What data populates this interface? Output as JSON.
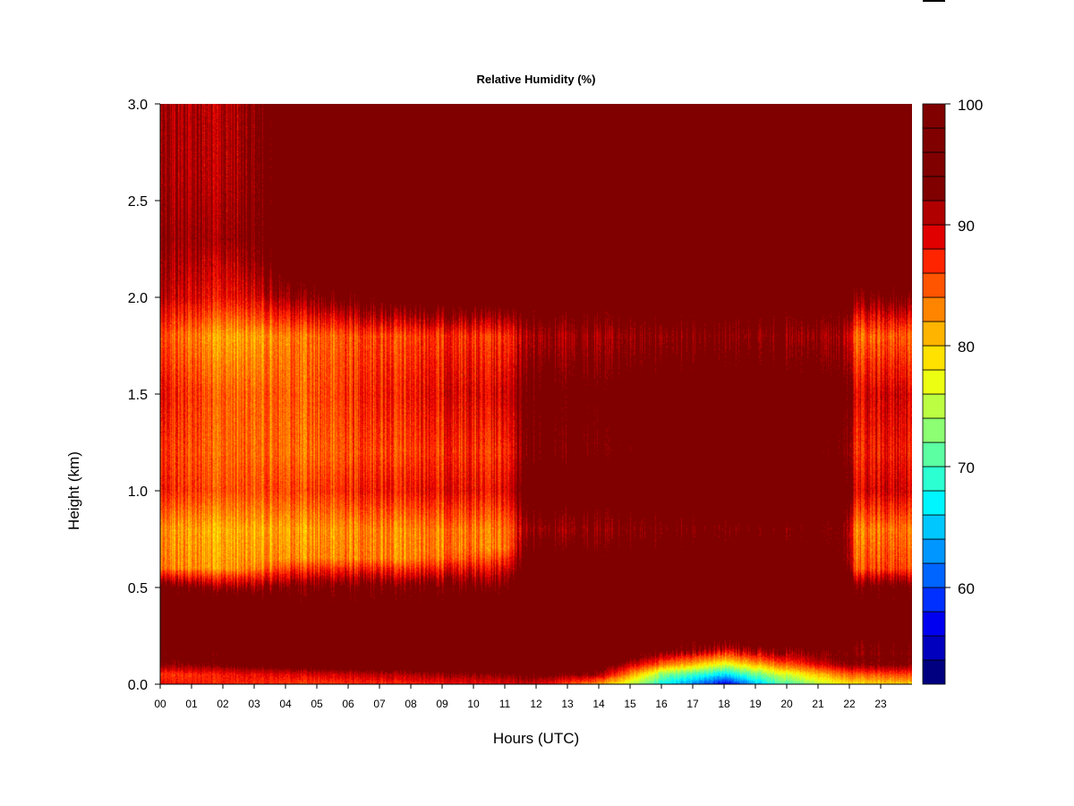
{
  "chart_data": {
    "type": "heatmap",
    "title": "Relative Humidity (%)",
    "xlabel": "Hours (UTC)",
    "ylabel": "Height (km)",
    "x_ticks": [
      "00",
      "01",
      "02",
      "03",
      "04",
      "05",
      "06",
      "07",
      "08",
      "09",
      "10",
      "11",
      "12",
      "13",
      "14",
      "15",
      "16",
      "17",
      "18",
      "19",
      "20",
      "21",
      "22",
      "23"
    ],
    "y_ticks": [
      "0.0",
      "0.5",
      "1.0",
      "1.5",
      "2.0",
      "2.5",
      "3.0"
    ],
    "xlim": [
      0,
      24
    ],
    "ylim": [
      0,
      3.0
    ],
    "colorbar": {
      "min": 52,
      "max": 100,
      "step": 2,
      "tick_labels": [
        "100",
        "90",
        "80",
        "70",
        "60"
      ],
      "tick_values": [
        100,
        90,
        80,
        70,
        60
      ],
      "colors": [
        "#000080",
        "#0000BE",
        "#0000F0",
        "#0030FF",
        "#0064FF",
        "#0096FF",
        "#00C8FF",
        "#00F6FF",
        "#2CFFD2",
        "#5CFFA2",
        "#8CFF72",
        "#BCFF42",
        "#ECFF12",
        "#FFE200",
        "#FFB400",
        "#FF8400",
        "#FF5400",
        "#FF2400",
        "#E00000",
        "#B00000",
        "#800000",
        "#800000",
        "#800000",
        "#800000"
      ]
    },
    "time_profiles": [
      {
        "hour": 0,
        "points": [
          [
            0,
            88
          ],
          [
            0.05,
            86
          ],
          [
            0.1,
            92
          ],
          [
            0.2,
            97
          ],
          [
            0.35,
            97
          ],
          [
            0.5,
            95
          ],
          [
            0.6,
            83
          ],
          [
            0.8,
            82
          ],
          [
            1.0,
            87
          ],
          [
            1.2,
            86
          ],
          [
            1.5,
            88
          ],
          [
            1.8,
            85
          ],
          [
            2.0,
            90
          ],
          [
            2.3,
            92
          ],
          [
            2.6,
            91
          ],
          [
            3.0,
            91
          ]
        ]
      },
      {
        "hour": 2.5,
        "points": [
          [
            0,
            87
          ],
          [
            0.05,
            88
          ],
          [
            0.1,
            94
          ],
          [
            0.25,
            98
          ],
          [
            0.45,
            96
          ],
          [
            0.6,
            82
          ],
          [
            0.8,
            81
          ],
          [
            1.0,
            85
          ],
          [
            1.2,
            84
          ],
          [
            1.5,
            84
          ],
          [
            1.8,
            81
          ],
          [
            2.0,
            88
          ],
          [
            2.3,
            92
          ],
          [
            2.6,
            91
          ],
          [
            3.0,
            91
          ]
        ]
      },
      {
        "hour": 4.5,
        "points": [
          [
            0,
            86
          ],
          [
            0.05,
            89
          ],
          [
            0.1,
            96
          ],
          [
            0.3,
            98
          ],
          [
            0.5,
            94
          ],
          [
            0.65,
            83
          ],
          [
            0.8,
            82
          ],
          [
            1.0,
            86
          ],
          [
            1.2,
            84
          ],
          [
            1.5,
            85
          ],
          [
            1.8,
            84
          ],
          [
            2.0,
            93
          ],
          [
            2.2,
            99
          ],
          [
            3.0,
            100
          ]
        ]
      },
      {
        "hour": 8,
        "points": [
          [
            0,
            87
          ],
          [
            0.05,
            91
          ],
          [
            0.1,
            97
          ],
          [
            0.3,
            98
          ],
          [
            0.5,
            94
          ],
          [
            0.65,
            83
          ],
          [
            0.8,
            83
          ],
          [
            1.0,
            88
          ],
          [
            1.2,
            86
          ],
          [
            1.5,
            88
          ],
          [
            1.8,
            86
          ],
          [
            2.0,
            97
          ],
          [
            2.2,
            100
          ],
          [
            3.0,
            100
          ]
        ]
      },
      {
        "hour": 11,
        "points": [
          [
            0,
            89
          ],
          [
            0.05,
            93
          ],
          [
            0.1,
            98
          ],
          [
            0.4,
            99
          ],
          [
            0.55,
            92
          ],
          [
            0.7,
            84
          ],
          [
            0.8,
            84
          ],
          [
            1.0,
            89
          ],
          [
            1.2,
            87
          ],
          [
            1.5,
            90
          ],
          [
            1.8,
            87
          ],
          [
            2.0,
            98
          ],
          [
            3.0,
            100
          ]
        ]
      },
      {
        "hour": 11.7,
        "points": [
          [
            0,
            90
          ],
          [
            0.05,
            94
          ],
          [
            0.1,
            99
          ],
          [
            0.5,
            100
          ],
          [
            0.65,
            96
          ],
          [
            0.8,
            92
          ],
          [
            1.0,
            97
          ],
          [
            1.2,
            94
          ],
          [
            1.5,
            95
          ],
          [
            1.8,
            91
          ],
          [
            2.0,
            98
          ],
          [
            3.0,
            100
          ]
        ]
      },
      {
        "hour": 14,
        "points": [
          [
            0,
            82
          ],
          [
            0.05,
            92
          ],
          [
            0.12,
            98
          ],
          [
            0.5,
            100
          ],
          [
            0.65,
            96
          ],
          [
            0.8,
            93
          ],
          [
            1.0,
            98
          ],
          [
            1.2,
            95
          ],
          [
            1.5,
            96
          ],
          [
            1.8,
            92
          ],
          [
            2.0,
            98
          ],
          [
            3.0,
            100
          ]
        ]
      },
      {
        "hour": 16,
        "points": [
          [
            0,
            68
          ],
          [
            0.05,
            73
          ],
          [
            0.1,
            84
          ],
          [
            0.18,
            96
          ],
          [
            0.5,
            100
          ],
          [
            0.65,
            97
          ],
          [
            0.8,
            94
          ],
          [
            1.0,
            98
          ],
          [
            1.2,
            96
          ],
          [
            1.5,
            97
          ],
          [
            1.8,
            93
          ],
          [
            2.0,
            98
          ],
          [
            3.0,
            100
          ]
        ]
      },
      {
        "hour": 18,
        "points": [
          [
            0,
            56
          ],
          [
            0.05,
            66
          ],
          [
            0.1,
            76
          ],
          [
            0.18,
            90
          ],
          [
            0.25,
            97
          ],
          [
            0.5,
            100
          ],
          [
            0.65,
            97
          ],
          [
            0.8,
            94
          ],
          [
            1.0,
            99
          ],
          [
            1.2,
            96
          ],
          [
            1.5,
            98
          ],
          [
            1.8,
            93
          ],
          [
            2.0,
            98
          ],
          [
            3.0,
            100
          ]
        ]
      },
      {
        "hour": 19.5,
        "points": [
          [
            0,
            68
          ],
          [
            0.05,
            74
          ],
          [
            0.12,
            86
          ],
          [
            0.2,
            96
          ],
          [
            0.5,
            100
          ],
          [
            0.65,
            97
          ],
          [
            0.8,
            95
          ],
          [
            1.0,
            99
          ],
          [
            1.2,
            97
          ],
          [
            1.5,
            98
          ],
          [
            1.8,
            93
          ],
          [
            2.0,
            98
          ],
          [
            3.0,
            100
          ]
        ]
      },
      {
        "hour": 21.8,
        "points": [
          [
            0,
            78
          ],
          [
            0.05,
            84
          ],
          [
            0.1,
            92
          ],
          [
            0.2,
            97
          ],
          [
            0.5,
            99
          ],
          [
            0.65,
            96
          ],
          [
            0.8,
            95
          ],
          [
            1.0,
            98
          ],
          [
            1.2,
            95
          ],
          [
            1.5,
            97
          ],
          [
            1.8,
            92
          ],
          [
            2.0,
            98
          ],
          [
            3.0,
            100
          ]
        ]
      },
      {
        "hour": 22.2,
        "points": [
          [
            0,
            79
          ],
          [
            0.05,
            85
          ],
          [
            0.1,
            93
          ],
          [
            0.3,
            97
          ],
          [
            0.5,
            95
          ],
          [
            0.6,
            86
          ],
          [
            0.8,
            84
          ],
          [
            1.0,
            90
          ],
          [
            1.2,
            88
          ],
          [
            1.5,
            90
          ],
          [
            1.8,
            85
          ],
          [
            2.0,
            94
          ],
          [
            2.2,
            100
          ],
          [
            3.0,
            100
          ]
        ]
      },
      {
        "hour": 24,
        "points": [
          [
            0,
            80
          ],
          [
            0.05,
            86
          ],
          [
            0.1,
            93
          ],
          [
            0.3,
            97
          ],
          [
            0.5,
            95
          ],
          [
            0.6,
            86
          ],
          [
            0.8,
            84
          ],
          [
            1.0,
            90
          ],
          [
            1.2,
            88
          ],
          [
            1.5,
            90
          ],
          [
            1.8,
            85
          ],
          [
            2.0,
            94
          ],
          [
            2.2,
            100
          ],
          [
            3.0,
            100
          ]
        ]
      }
    ]
  }
}
